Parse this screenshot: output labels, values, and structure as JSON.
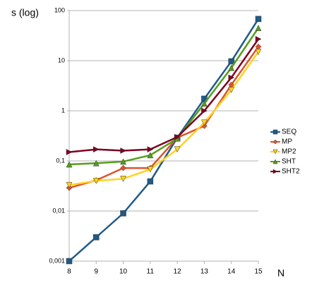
{
  "chart_data": {
    "type": "line",
    "y_label": "s (log)",
    "x_label": "N",
    "x": [
      8,
      9,
      10,
      11,
      12,
      13,
      14,
      15
    ],
    "xlim": [
      8,
      15
    ],
    "xticks": [
      8,
      9,
      10,
      11,
      12,
      13,
      14,
      15
    ],
    "ylim": [
      0.001,
      100
    ],
    "log_y": true,
    "grid": true,
    "legend": "right",
    "yticks": [
      {
        "value": 0.001,
        "label": "0,001"
      },
      {
        "value": 0.01,
        "label": "0,01"
      },
      {
        "value": 0.1,
        "label": "0,1"
      },
      1,
      10,
      100
    ],
    "series": [
      {
        "name": "SEQ",
        "color": "#1f5a8a",
        "marker": "square",
        "values": [
          0.001,
          0.003,
          0.009,
          0.039,
          0.29,
          1.74,
          9.7,
          68
        ]
      },
      {
        "name": "MP",
        "color": "#e0522a",
        "marker": "diamond",
        "values": [
          0.029,
          0.041,
          0.072,
          0.072,
          0.29,
          0.5,
          3.3,
          19
        ]
      },
      {
        "name": "MP2",
        "color": "#ffd320",
        "marker": "triangle-down",
        "values": [
          0.033,
          0.04,
          0.044,
          0.068,
          0.17,
          0.58,
          2.6,
          15
        ]
      },
      {
        "name": "SHT",
        "color": "#579d1c",
        "marker": "triangle-up",
        "values": [
          0.085,
          0.09,
          0.097,
          0.13,
          0.28,
          1.4,
          7.2,
          45
        ]
      },
      {
        "name": "SHT2",
        "color": "#7e0021",
        "marker": "triangle-right",
        "values": [
          0.15,
          0.17,
          0.16,
          0.17,
          0.3,
          1.0,
          4.6,
          27
        ]
      }
    ]
  }
}
